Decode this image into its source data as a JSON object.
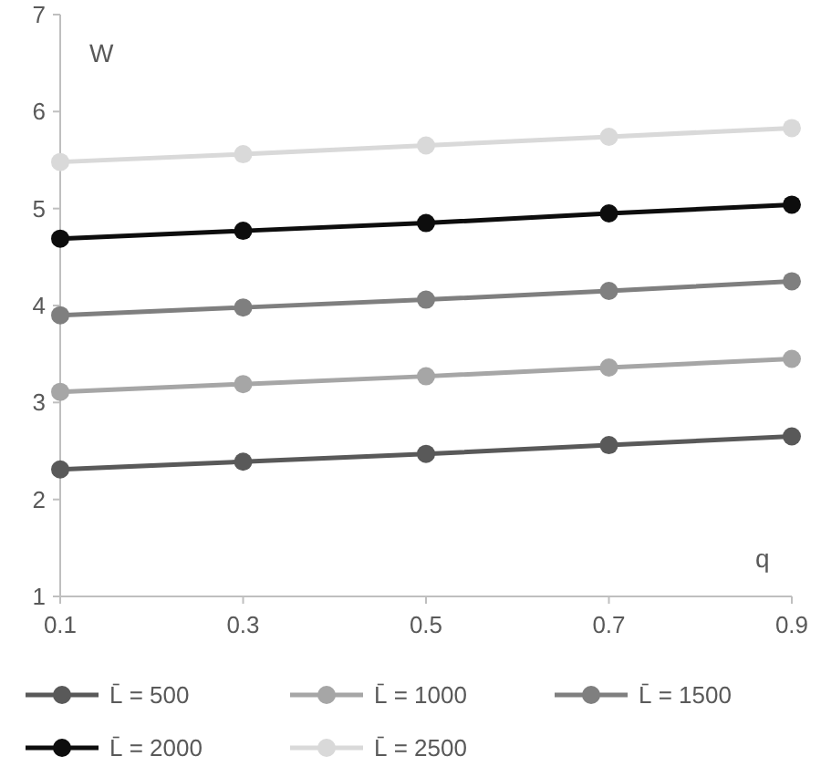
{
  "chart_data": {
    "type": "line",
    "xlabel": "q",
    "ylabel": "W",
    "x": [
      0.1,
      0.3,
      0.5,
      0.7,
      0.9
    ],
    "xlim": [
      0.1,
      0.9
    ],
    "xticks": [
      0.1,
      0.3,
      0.5,
      0.7,
      0.9
    ],
    "ylim": [
      1,
      7
    ],
    "yticks": [
      1,
      2,
      3,
      4,
      5,
      6,
      7
    ],
    "grid": false,
    "legend": "bottom",
    "marker": "circle",
    "line_style": "solid",
    "series": [
      {
        "name": "L̄ = 500",
        "color": "#595959",
        "values": [
          2.31,
          2.39,
          2.47,
          2.56,
          2.65
        ]
      },
      {
        "name": "L̄ = 1000",
        "color": "#a6a6a6",
        "values": [
          3.11,
          3.19,
          3.27,
          3.36,
          3.45
        ]
      },
      {
        "name": "L̄ = 1500",
        "color": "#7f7f7f",
        "values": [
          3.9,
          3.98,
          4.06,
          4.15,
          4.25
        ]
      },
      {
        "name": "L̄ = 2000",
        "color": "#0d0d0d",
        "values": [
          4.69,
          4.77,
          4.85,
          4.95,
          5.04
        ]
      },
      {
        "name": "L̄ = 2500",
        "color": "#d9d9d9",
        "values": [
          5.48,
          5.56,
          5.65,
          5.74,
          5.83
        ]
      }
    ]
  }
}
